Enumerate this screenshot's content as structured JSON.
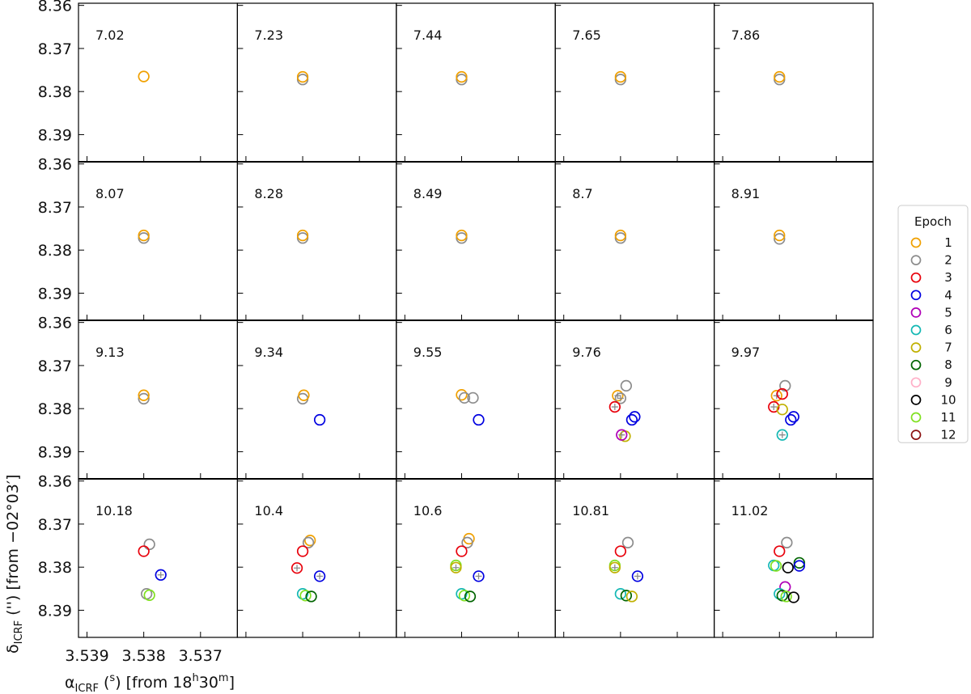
{
  "chart_data": {
    "type": "scatter",
    "layout": "small-multiples",
    "grid_rows": 4,
    "grid_cols": 5,
    "xlabel_main": "α",
    "xlabel_sub": "ICRF",
    "xlabel_unit": " (",
    "xlabel_unit_sup": "s",
    "xlabel_rest": ") [from 18",
    "xlabel_h": "h",
    "xlabel_mid": "30",
    "xlabel_m": "m",
    "xlabel_end": "]",
    "ylabel_main": "δ",
    "ylabel_sub": "ICRF",
    "ylabel_rest": " ('') [from −02°03′]",
    "x_ticks": [
      "3.539",
      "3.538",
      "3.537"
    ],
    "x_tick_values": [
      3.539,
      3.538,
      3.537
    ],
    "y_ticks": [
      "8.36",
      "8.37",
      "8.38",
      "8.39"
    ],
    "y_tick_values": [
      8.36,
      8.37,
      8.38,
      8.39
    ],
    "xlim": [
      3.53915,
      3.53635
    ],
    "ylim": [
      8.3595,
      8.3963
    ],
    "x_reversed": true,
    "y_reversed": true,
    "legend": {
      "title": "Epoch",
      "placement": "right",
      "entries": [
        {
          "label": "1",
          "color": "#f0a000"
        },
        {
          "label": "2",
          "color": "#8c8c8c"
        },
        {
          "label": "3",
          "color": "#e8000b"
        },
        {
          "label": "4",
          "color": "#0000e0"
        },
        {
          "label": "5",
          "color": "#b000b8"
        },
        {
          "label": "6",
          "color": "#14b8b4"
        },
        {
          "label": "7",
          "color": "#c0b000"
        },
        {
          "label": "8",
          "color": "#006400"
        },
        {
          "label": "9",
          "color": "#ffb0c8"
        },
        {
          "label": "10",
          "color": "#000000"
        },
        {
          "label": "11",
          "color": "#80e020"
        },
        {
          "label": "12",
          "color": "#8b1010"
        }
      ]
    },
    "panels": [
      {
        "label": "7.02",
        "points": [
          {
            "x": 3.538,
            "y": 8.3765,
            "epoch": 1
          }
        ]
      },
      {
        "label": "7.23",
        "points": [
          {
            "x": 3.538,
            "y": 8.3772,
            "epoch": 2
          },
          {
            "x": 3.538,
            "y": 8.3766,
            "epoch": 1
          }
        ]
      },
      {
        "label": "7.44",
        "points": [
          {
            "x": 3.538,
            "y": 8.3772,
            "epoch": 2
          },
          {
            "x": 3.538,
            "y": 8.3766,
            "epoch": 1
          }
        ]
      },
      {
        "label": "7.65",
        "points": [
          {
            "x": 3.538,
            "y": 8.3772,
            "epoch": 2
          },
          {
            "x": 3.538,
            "y": 8.3766,
            "epoch": 1
          }
        ]
      },
      {
        "label": "7.86",
        "points": [
          {
            "x": 3.538,
            "y": 8.3772,
            "epoch": 2
          },
          {
            "x": 3.538,
            "y": 8.3766,
            "epoch": 1
          }
        ]
      },
      {
        "label": "8.07",
        "points": [
          {
            "x": 3.538,
            "y": 8.3772,
            "epoch": 2
          },
          {
            "x": 3.538,
            "y": 8.3766,
            "epoch": 1
          }
        ]
      },
      {
        "label": "8.28",
        "points": [
          {
            "x": 3.538,
            "y": 8.3772,
            "epoch": 2
          },
          {
            "x": 3.538,
            "y": 8.3766,
            "epoch": 1
          }
        ]
      },
      {
        "label": "8.49",
        "points": [
          {
            "x": 3.538,
            "y": 8.3772,
            "epoch": 2
          },
          {
            "x": 3.538,
            "y": 8.3766,
            "epoch": 1
          }
        ]
      },
      {
        "label": "8.7",
        "points": [
          {
            "x": 3.538,
            "y": 8.3772,
            "epoch": 2
          },
          {
            "x": 3.538,
            "y": 8.3766,
            "epoch": 1
          }
        ]
      },
      {
        "label": "8.91",
        "points": [
          {
            "x": 3.538,
            "y": 8.3774,
            "epoch": 2
          },
          {
            "x": 3.538,
            "y": 8.3766,
            "epoch": 1
          }
        ]
      },
      {
        "label": "9.13",
        "points": [
          {
            "x": 3.538,
            "y": 8.3777,
            "epoch": 2
          },
          {
            "x": 3.538,
            "y": 8.3769,
            "epoch": 1
          }
        ]
      },
      {
        "label": "9.34",
        "points": [
          {
            "x": 3.538,
            "y": 8.3777,
            "epoch": 2
          },
          {
            "x": 3.53798,
            "y": 8.3769,
            "epoch": 1
          },
          {
            "x": 3.5377,
            "y": 8.3826,
            "epoch": 4
          }
        ]
      },
      {
        "label": "9.55",
        "points": [
          {
            "x": 3.538,
            "y": 8.3768,
            "epoch": 1
          },
          {
            "x": 3.53795,
            "y": 8.3775,
            "epoch": 2
          },
          {
            "x": 3.5378,
            "y": 8.3775,
            "epoch": 2
          },
          {
            "x": 3.5377,
            "y": 8.3826,
            "epoch": 4
          }
        ]
      },
      {
        "label": "9.76",
        "points": [
          {
            "x": 3.5379,
            "y": 8.3747,
            "epoch": 2
          },
          {
            "x": 3.53805,
            "y": 8.377,
            "epoch": 1,
            "cross": true
          },
          {
            "x": 3.538,
            "y": 8.3776,
            "epoch": 2,
            "cross": true
          },
          {
            "x": 3.5381,
            "y": 8.3796,
            "epoch": 3,
            "cross": true
          },
          {
            "x": 3.53775,
            "y": 8.3819,
            "epoch": 4
          },
          {
            "x": 3.5378,
            "y": 8.3826,
            "epoch": 4
          },
          {
            "x": 3.53792,
            "y": 8.3864,
            "epoch": 7
          },
          {
            "x": 3.53798,
            "y": 8.3861,
            "epoch": 5,
            "cross": true
          }
        ]
      },
      {
        "label": "9.97",
        "points": [
          {
            "x": 3.5379,
            "y": 8.3747,
            "epoch": 2
          },
          {
            "x": 3.53805,
            "y": 8.377,
            "epoch": 1,
            "cross": true
          },
          {
            "x": 3.53795,
            "y": 8.3766,
            "epoch": 3
          },
          {
            "x": 3.5381,
            "y": 8.3796,
            "epoch": 3,
            "cross": true
          },
          {
            "x": 3.53795,
            "y": 8.3802,
            "epoch": 7
          },
          {
            "x": 3.53775,
            "y": 8.3819,
            "epoch": 4
          },
          {
            "x": 3.5378,
            "y": 8.3826,
            "epoch": 4
          },
          {
            "x": 3.53795,
            "y": 8.3861,
            "epoch": 6,
            "cross": true
          }
        ]
      },
      {
        "label": "10.18",
        "points": [
          {
            "x": 3.5379,
            "y": 8.3747,
            "epoch": 2
          },
          {
            "x": 3.538,
            "y": 8.3763,
            "epoch": 3
          },
          {
            "x": 3.5377,
            "y": 8.3818,
            "epoch": 4,
            "cross": true
          },
          {
            "x": 3.53795,
            "y": 8.3862,
            "epoch": 2
          },
          {
            "x": 3.5379,
            "y": 8.3865,
            "epoch": 11
          }
        ]
      },
      {
        "label": "10.4",
        "points": [
          {
            "x": 3.53787,
            "y": 8.3738,
            "epoch": 1
          },
          {
            "x": 3.5379,
            "y": 8.3743,
            "epoch": 2
          },
          {
            "x": 3.538,
            "y": 8.3763,
            "epoch": 3
          },
          {
            "x": 3.5381,
            "y": 8.3802,
            "epoch": 3,
            "cross": true
          },
          {
            "x": 3.5377,
            "y": 8.3821,
            "epoch": 4,
            "cross": true
          },
          {
            "x": 3.538,
            "y": 8.3862,
            "epoch": 6
          },
          {
            "x": 3.53795,
            "y": 8.3866,
            "epoch": 11
          },
          {
            "x": 3.53785,
            "y": 8.3868,
            "epoch": 8
          }
        ]
      },
      {
        "label": "10.6",
        "points": [
          {
            "x": 3.53787,
            "y": 8.3734,
            "epoch": 1
          },
          {
            "x": 3.5379,
            "y": 8.3743,
            "epoch": 2
          },
          {
            "x": 3.538,
            "y": 8.3763,
            "epoch": 3
          },
          {
            "x": 3.5381,
            "y": 8.3796,
            "epoch": 11
          },
          {
            "x": 3.5381,
            "y": 8.3801,
            "epoch": 7,
            "cross": true
          },
          {
            "x": 3.5377,
            "y": 8.3821,
            "epoch": 4,
            "cross": true
          },
          {
            "x": 3.538,
            "y": 8.3862,
            "epoch": 6
          },
          {
            "x": 3.53795,
            "y": 8.3866,
            "epoch": 11
          },
          {
            "x": 3.53785,
            "y": 8.3868,
            "epoch": 8
          }
        ]
      },
      {
        "label": "10.81",
        "points": [
          {
            "x": 3.53787,
            "y": 8.3743,
            "epoch": 2
          },
          {
            "x": 3.538,
            "y": 8.3763,
            "epoch": 3
          },
          {
            "x": 3.5381,
            "y": 8.3796,
            "epoch": 11
          },
          {
            "x": 3.5381,
            "y": 8.3801,
            "epoch": 7,
            "cross": true
          },
          {
            "x": 3.5377,
            "y": 8.3821,
            "epoch": 4,
            "cross": true
          },
          {
            "x": 3.538,
            "y": 8.3862,
            "epoch": 6
          },
          {
            "x": 3.5379,
            "y": 8.3866,
            "epoch": 8
          },
          {
            "x": 3.5378,
            "y": 8.3868,
            "epoch": 7
          }
        ]
      },
      {
        "label": "11.02",
        "points": [
          {
            "x": 3.53787,
            "y": 8.3743,
            "epoch": 2
          },
          {
            "x": 3.538,
            "y": 8.3763,
            "epoch": 3
          },
          {
            "x": 3.5381,
            "y": 8.3796,
            "epoch": 6
          },
          {
            "x": 3.53806,
            "y": 8.3797,
            "epoch": 11
          },
          {
            "x": 3.53765,
            "y": 8.379,
            "epoch": 8
          },
          {
            "x": 3.53765,
            "y": 8.3797,
            "epoch": 4
          },
          {
            "x": 3.53785,
            "y": 8.3801,
            "epoch": 10
          },
          {
            "x": 3.5379,
            "y": 8.3846,
            "epoch": 5
          },
          {
            "x": 3.538,
            "y": 8.3862,
            "epoch": 6
          },
          {
            "x": 3.53795,
            "y": 8.3866,
            "epoch": 8
          },
          {
            "x": 3.53788,
            "y": 8.3868,
            "epoch": 11
          },
          {
            "x": 3.53775,
            "y": 8.387,
            "epoch": 10
          }
        ]
      }
    ]
  }
}
